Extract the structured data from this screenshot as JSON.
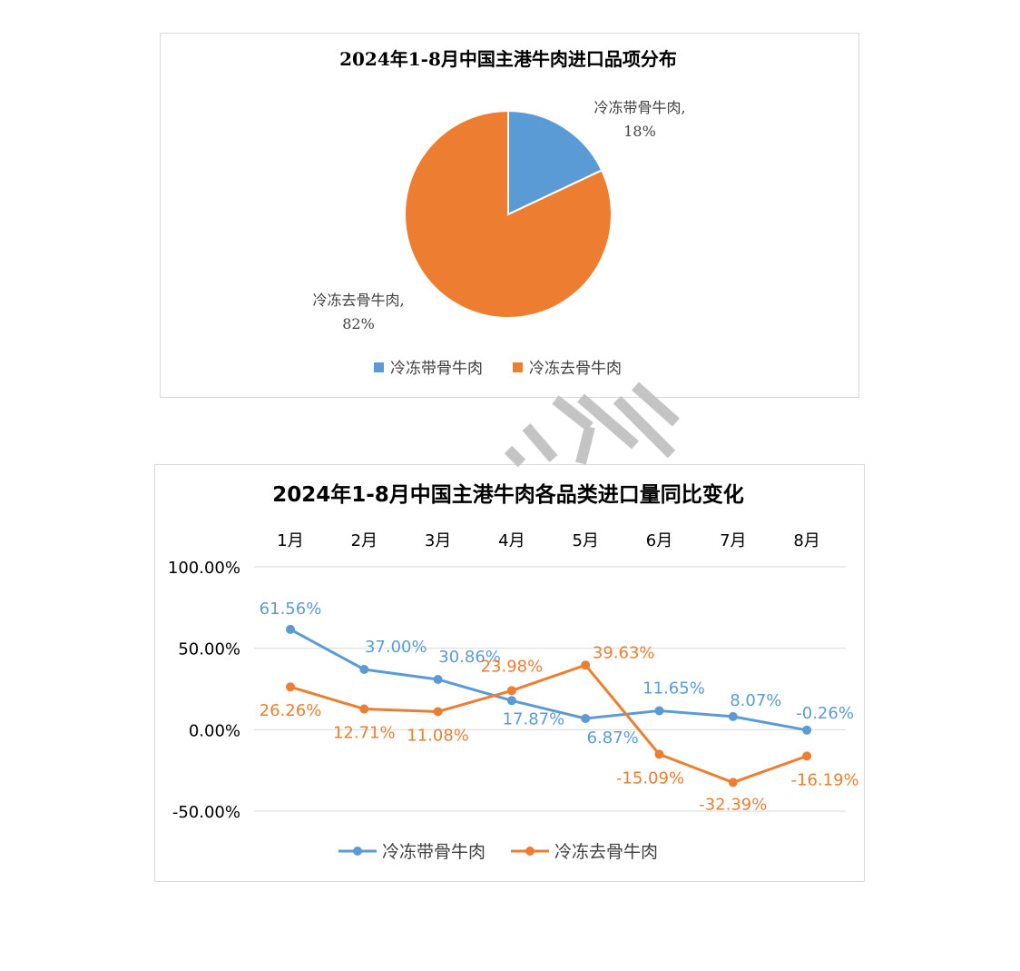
{
  "chart_data": [
    {
      "type": "pie",
      "title": "2024年1-8月中国主港牛肉进口品项分布",
      "slices": [
        {
          "name": "冷冻带骨牛肉",
          "value": 18,
          "label": "冷冻带骨牛肉,",
          "pct_label": "18%",
          "color": "#5b9bd5"
        },
        {
          "name": "冷冻去骨牛肉",
          "value": 82,
          "label": "冷冻去骨牛肉,",
          "pct_label": "82%",
          "color": "#ed7d31"
        }
      ],
      "legend": [
        "冷冻带骨牛肉",
        "冷冻去骨牛肉"
      ],
      "legend_position": "bottom"
    },
    {
      "type": "line",
      "title": "2024年1-8月中国主港牛肉各品类进口量同比变化",
      "categories": [
        "1月",
        "2月",
        "3月",
        "4月",
        "5月",
        "6月",
        "7月",
        "8月"
      ],
      "x_axis_position": "top",
      "ylim": [
        -50,
        100
      ],
      "yticks": [
        "100.00%",
        "50.00%",
        "0.00%",
        "-50.00%"
      ],
      "ytick_values": [
        100,
        50,
        0,
        -50
      ],
      "grid": true,
      "legend_position": "bottom",
      "series": [
        {
          "name": "冷冻带骨牛肉",
          "color": "#5b9bd5",
          "values": [
            61.56,
            37.0,
            30.86,
            17.87,
            6.87,
            11.65,
            8.07,
            -0.26
          ],
          "labels": [
            "61.56%",
            "37.00%",
            "30.86%",
            "17.87%",
            "6.87%",
            "11.65%",
            "8.07%",
            "-0.26%"
          ]
        },
        {
          "name": "冷冻去骨牛肉",
          "color": "#ed7d31",
          "values": [
            26.26,
            12.71,
            11.08,
            23.98,
            39.63,
            -15.09,
            -32.39,
            -16.19
          ],
          "labels": [
            "26.26%",
            "12.71%",
            "11.08%",
            "23.98%",
            "39.63%",
            "-15.09%",
            "-32.39%",
            "-16.19%"
          ]
        }
      ]
    }
  ]
}
